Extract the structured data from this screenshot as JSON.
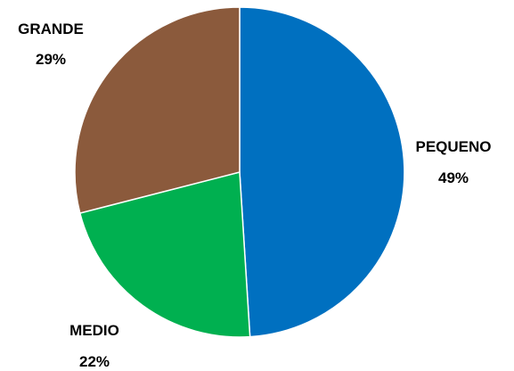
{
  "chart_data": {
    "type": "pie",
    "slices": [
      {
        "label": "PEQUENO",
        "percent_label": "49%",
        "value": 49,
        "color": "#0070C0"
      },
      {
        "label": "MEDIO",
        "percent_label": "22%",
        "value": 22,
        "color": "#00B050"
      },
      {
        "label": "GRANDE",
        "percent_label": "29%",
        "value": 29,
        "color": "#8B5A3C"
      }
    ],
    "start_angle": "12 o'clock",
    "direction": "clockwise",
    "legend": "none",
    "data_labels": "category name and percentage outside slices"
  }
}
